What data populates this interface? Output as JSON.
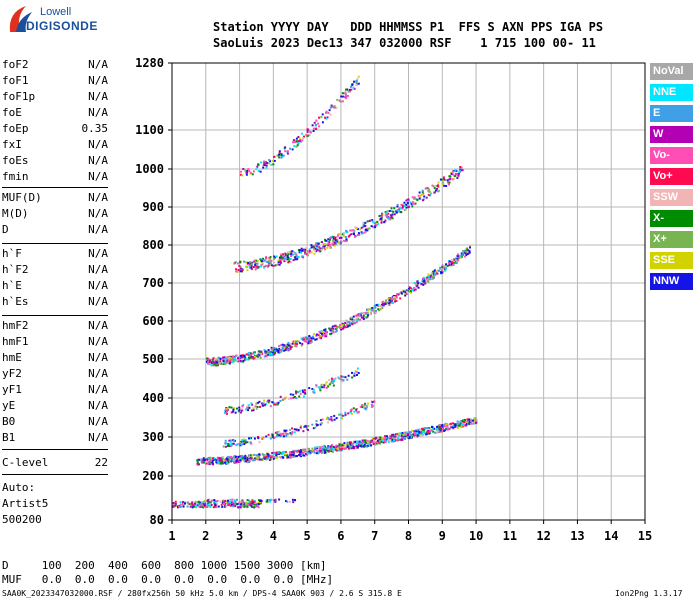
{
  "logo": {
    "line1": "Lowell",
    "line2": "DIGISONDE"
  },
  "header": {
    "line1": "Station YYYY DAY   DDD HHMMSS P1  FFS S AXN PPS IGA PS",
    "line2": "SaoLuis 2023 Dec13 347 032000 RSF    1 715 100 00- 11"
  },
  "params_group1": [
    {
      "name": "foF2",
      "value": "N/A"
    },
    {
      "name": "foF1",
      "value": "N/A"
    },
    {
      "name": "foF1p",
      "value": "N/A"
    },
    {
      "name": "foE",
      "value": "N/A"
    },
    {
      "name": "foEp",
      "value": "0.35"
    },
    {
      "name": "fxI",
      "value": "N/A"
    },
    {
      "name": "foEs",
      "value": "N/A"
    },
    {
      "name": "fmin",
      "value": "N/A"
    }
  ],
  "params_group2": [
    {
      "name": "MUF(D)",
      "value": "N/A"
    },
    {
      "name": "M(D)",
      "value": "N/A"
    },
    {
      "name": "D",
      "value": "N/A"
    }
  ],
  "params_group3": [
    {
      "name": "h`F",
      "value": "N/A"
    },
    {
      "name": "h`F2",
      "value": "N/A"
    },
    {
      "name": "h`E",
      "value": "N/A"
    },
    {
      "name": "h`Es",
      "value": "N/A"
    }
  ],
  "params_group4": [
    {
      "name": "hmF2",
      "value": "N/A"
    },
    {
      "name": "hmF1",
      "value": "N/A"
    },
    {
      "name": "hmE",
      "value": "N/A"
    },
    {
      "name": "yF2",
      "value": "N/A"
    },
    {
      "name": "yF1",
      "value": "N/A"
    },
    {
      "name": "yE",
      "value": "N/A"
    },
    {
      "name": "B0",
      "value": "N/A"
    },
    {
      "name": "B1",
      "value": "N/A"
    }
  ],
  "c_level": {
    "name": "C-level",
    "value": "22"
  },
  "auto": {
    "line1": "Auto:",
    "line2": "Artist5",
    "line3": "500200"
  },
  "legend": [
    {
      "label": "NoVal",
      "color": "#a8a8a8"
    },
    {
      "label": "NNE",
      "color": "#00e6ff"
    },
    {
      "label": "E",
      "color": "#3fa0e8"
    },
    {
      "label": "W",
      "color": "#b400b4"
    },
    {
      "label": "Vo-",
      "color": "#ff4fb4"
    },
    {
      "label": "Vo+",
      "color": "#ff0a50"
    },
    {
      "label": "SSW",
      "color": "#f2b4b4"
    },
    {
      "label": "X-",
      "color": "#008c00"
    },
    {
      "label": "X+",
      "color": "#78b450"
    },
    {
      "label": "SSE",
      "color": "#d2d200"
    },
    {
      "label": "NNW",
      "color": "#1414e6"
    }
  ],
  "footer": {
    "d_line": "D     100  200  400  600  800 1000 1500 3000 [km]",
    "muf_line": "MUF   0.0  0.0  0.0  0.0  0.0  0.0  0.0  0.0 [MHz]",
    "info_line": "SAA0K_2023347032000.RSF / 280fx256h 50 kHz 5.0 km / DPS-4 SAA0K 903 / 2.6 S 315.8 E",
    "version": "Ion2Png 1.3.17"
  },
  "chart_data": {
    "type": "scatter",
    "x_ticks": [
      1,
      2,
      3,
      4,
      5,
      6,
      7,
      8,
      9,
      10,
      11,
      12,
      13,
      14,
      15
    ],
    "y_ticks": [
      80,
      200,
      300,
      400,
      500,
      600,
      700,
      800,
      900,
      1000,
      1100,
      1280
    ],
    "xlim": [
      1,
      15
    ],
    "ylim": [
      80,
      1280
    ],
    "grid": true,
    "legend_position": "right",
    "traces": [
      {
        "name": "Es",
        "fmin": 1.0,
        "fmax": 3.6,
        "h0": 125,
        "k": 0,
        "p": 1,
        "spread": 8,
        "density": 2.2
      },
      {
        "name": "Es2",
        "fmin": 1.9,
        "fmax": 4.8,
        "h0": 135,
        "k": 0,
        "p": 1,
        "spread": 4,
        "density": 0.5
      },
      {
        "name": "F1",
        "fmin": 1.7,
        "fmax": 10.0,
        "h0": 240,
        "k": 0.9,
        "p": 1.6,
        "spread": 9,
        "density": 3
      },
      {
        "name": "F2",
        "fmin": 2.0,
        "fmax": 9.8,
        "h0": 495,
        "k": 1.8,
        "p": 1.7,
        "spread": 10,
        "density": 2.3
      },
      {
        "name": "F3",
        "fmin": 2.8,
        "fmax": 9.6,
        "h0": 745,
        "k": 3.0,
        "p": 1.6,
        "spread": 14,
        "density": 2
      },
      {
        "name": "F4",
        "fmin": 3.0,
        "fmax": 6.5,
        "h0": 990,
        "k": 12,
        "p": 1.5,
        "spread": 12,
        "density": 1.2
      },
      {
        "name": "S1",
        "fmin": 2.5,
        "fmax": 7.0,
        "h0": 285,
        "k": 3.5,
        "p": 1.5,
        "spread": 8,
        "density": 1
      },
      {
        "name": "S2",
        "fmin": 2.5,
        "fmax": 6.5,
        "h0": 370,
        "k": 4,
        "p": 1.5,
        "spread": 10,
        "density": 1
      }
    ]
  }
}
